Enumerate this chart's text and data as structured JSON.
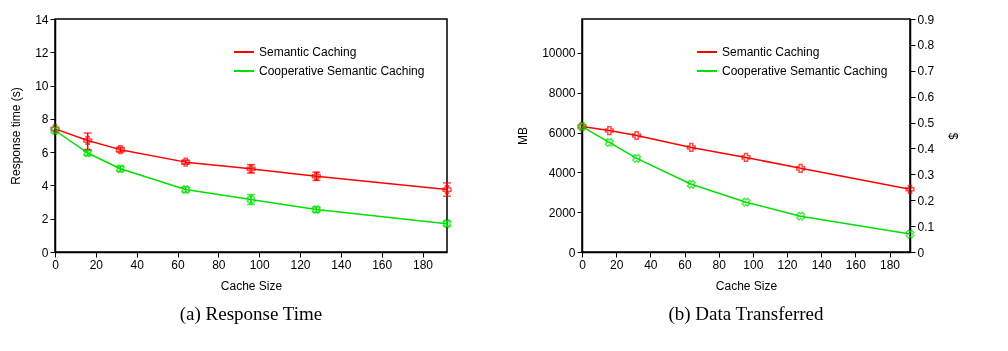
{
  "chart_data": [
    {
      "type": "line",
      "title": "(a) Response Time",
      "xlabel": "Cache Size",
      "ylabel": "Response time (s)",
      "x": [
        0,
        16,
        32,
        64,
        96,
        128,
        192
      ],
      "xlim": [
        0,
        192
      ],
      "xticks": [
        0,
        20,
        40,
        60,
        80,
        100,
        120,
        140,
        160,
        180
      ],
      "ylim": [
        0,
        14
      ],
      "yticks": [
        0,
        2,
        4,
        6,
        8,
        10,
        12,
        14
      ],
      "grid": false,
      "legend": "top right",
      "marker": "cross",
      "series": [
        {
          "name": "Semantic Caching",
          "color": "#ff0000",
          "values": [
            7.4,
            6.7,
            6.15,
            5.4,
            5.0,
            4.55,
            3.75
          ],
          "errors": [
            null,
            [
              6.15,
              7.15
            ],
            0.15,
            0.12,
            0.25,
            0.25,
            [
              3.35,
              4.15
            ]
          ]
        },
        {
          "name": "Cooperative Semantic Caching",
          "color": "#00e000",
          "values": [
            7.3,
            5.95,
            5.0,
            3.75,
            3.15,
            2.55,
            1.7
          ],
          "errors": [
            null,
            0.15,
            0.15,
            0.15,
            0.3,
            0.15,
            0.15
          ]
        }
      ]
    },
    {
      "type": "line",
      "title": "(b) Data Transferred",
      "xlabel": "Cache Size",
      "ylabel": "MB",
      "y2label": "$",
      "x": [
        0,
        16,
        32,
        64,
        96,
        128,
        192
      ],
      "xlim": [
        0,
        192
      ],
      "xticks": [
        0,
        20,
        40,
        60,
        80,
        100,
        120,
        140,
        160,
        180
      ],
      "ylim": [
        0,
        11700
      ],
      "yticks": [
        0,
        2000,
        4000,
        6000,
        8000,
        10000
      ],
      "y2lim": [
        0,
        0.9
      ],
      "y2ticks": [
        0,
        0.1,
        0.2,
        0.3,
        0.4,
        0.5,
        0.6,
        0.7,
        0.8,
        0.9
      ],
      "grid": false,
      "legend": "top right",
      "marker": "cross",
      "series": [
        {
          "name": "Semantic Caching",
          "color": "#ff0000",
          "values": [
            6300,
            6100,
            5850,
            5250,
            4750,
            4200,
            3150
          ]
        },
        {
          "name": "Cooperative Semantic Caching",
          "color": "#00e000",
          "values": [
            6300,
            5500,
            4700,
            3400,
            2500,
            1800,
            900
          ]
        }
      ]
    }
  ]
}
